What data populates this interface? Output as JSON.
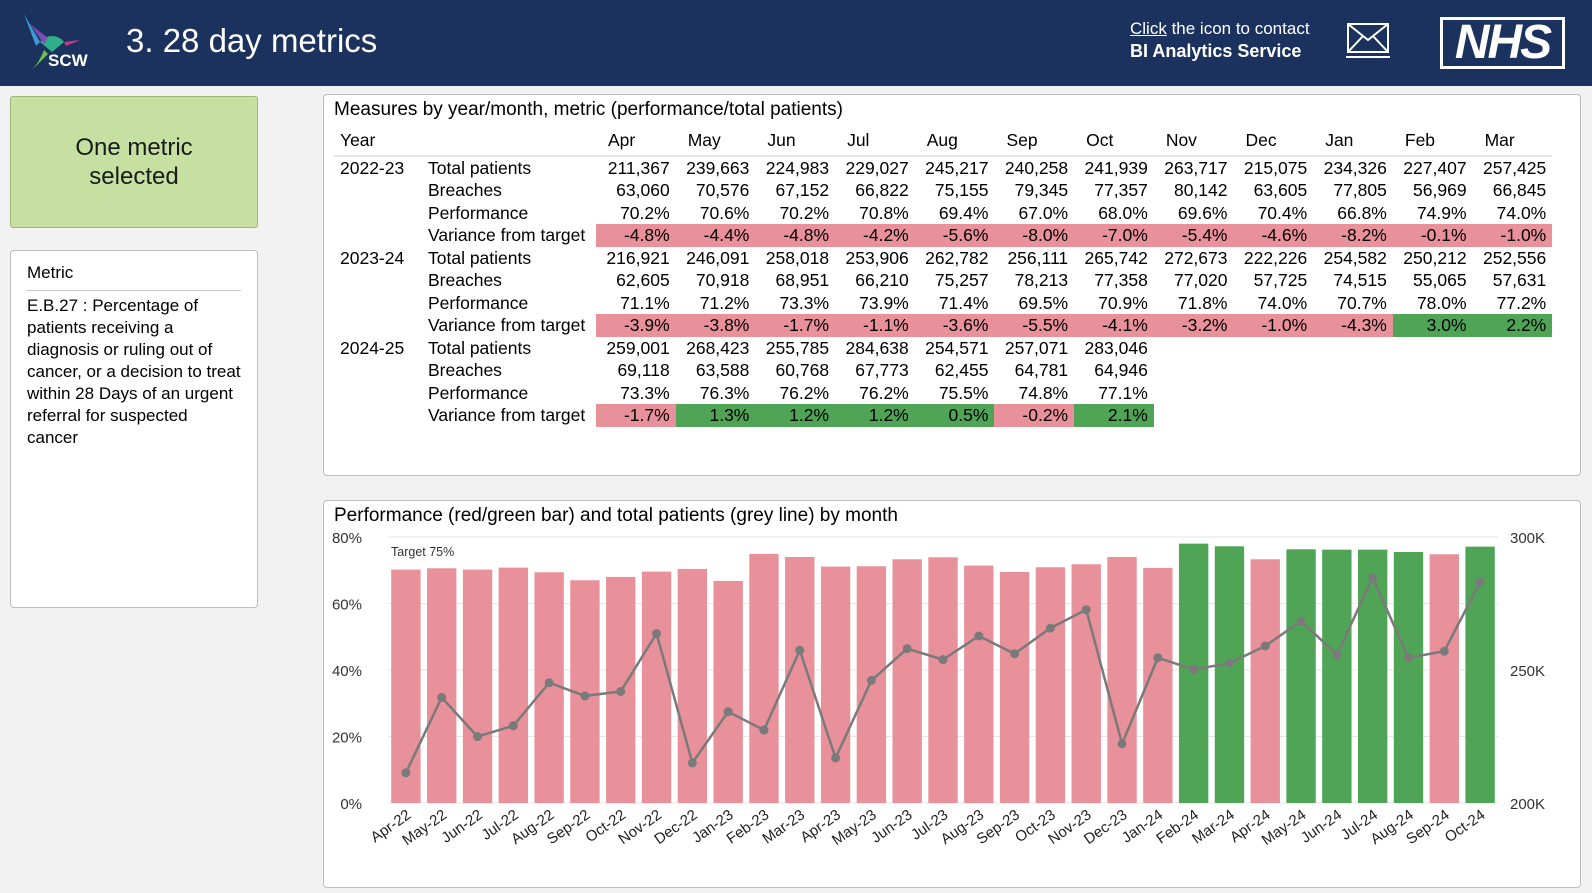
{
  "header": {
    "title": "3. 28 day metrics",
    "logo_text": "SCW",
    "contact_click": "Click",
    "contact_rest": " the icon to contact",
    "contact_service": "BI Analytics Service",
    "nhs_logo": "NHS"
  },
  "left": {
    "selection_label": "One metric selected",
    "metric_header": "Metric",
    "metric_description": "E.B.27 : Percentage of patients receiving a diagnosis or ruling out of cancer, or a decision to treat within 28 Days of an urgent referral for suspected cancer"
  },
  "table": {
    "title": "Measures by year/month, metric (performance/total patients)",
    "year_header": "Year",
    "months": [
      "Apr",
      "May",
      "Jun",
      "Jul",
      "Aug",
      "Sep",
      "Oct",
      "Nov",
      "Dec",
      "Jan",
      "Feb",
      "Mar"
    ],
    "years": [
      {
        "year": "2022-23",
        "rows": [
          {
            "measure": "Total patients",
            "values": [
              "211,367",
              "239,663",
              "224,983",
              "229,027",
              "245,217",
              "240,258",
              "241,939",
              "263,717",
              "215,075",
              "234,326",
              "227,407",
              "257,425"
            ]
          },
          {
            "measure": "Breaches",
            "values": [
              "63,060",
              "70,576",
              "67,152",
              "66,822",
              "75,155",
              "79,345",
              "77,357",
              "80,142",
              "63,605",
              "77,805",
              "56,969",
              "66,845"
            ]
          },
          {
            "measure": "Performance",
            "values": [
              "70.2%",
              "70.6%",
              "70.2%",
              "70.8%",
              "69.4%",
              "67.0%",
              "68.0%",
              "69.6%",
              "70.4%",
              "66.8%",
              "74.9%",
              "74.0%"
            ]
          },
          {
            "measure": "Variance from target",
            "values": [
              "-4.8%",
              "-4.4%",
              "-4.8%",
              "-4.2%",
              "-5.6%",
              "-8.0%",
              "-7.0%",
              "-5.4%",
              "-4.6%",
              "-8.2%",
              "-0.1%",
              "-1.0%"
            ]
          }
        ]
      },
      {
        "year": "2023-24",
        "rows": [
          {
            "measure": "Total patients",
            "values": [
              "216,921",
              "246,091",
              "258,018",
              "253,906",
              "262,782",
              "256,111",
              "265,742",
              "272,673",
              "222,226",
              "254,582",
              "250,212",
              "252,556"
            ]
          },
          {
            "measure": "Breaches",
            "values": [
              "62,605",
              "70,918",
              "68,951",
              "66,210",
              "75,257",
              "78,213",
              "77,358",
              "77,020",
              "57,725",
              "74,515",
              "55,065",
              "57,631"
            ]
          },
          {
            "measure": "Performance",
            "values": [
              "71.1%",
              "71.2%",
              "73.3%",
              "73.9%",
              "71.4%",
              "69.5%",
              "70.9%",
              "71.8%",
              "74.0%",
              "70.7%",
              "78.0%",
              "77.2%"
            ]
          },
          {
            "measure": "Variance from target",
            "values": [
              "-3.9%",
              "-3.8%",
              "-1.7%",
              "-1.1%",
              "-3.6%",
              "-5.5%",
              "-4.1%",
              "-3.2%",
              "-1.0%",
              "-4.3%",
              "3.0%",
              "2.2%"
            ]
          }
        ]
      },
      {
        "year": "2024-25",
        "rows": [
          {
            "measure": "Total patients",
            "values": [
              "259,001",
              "268,423",
              "255,785",
              "284,638",
              "254,571",
              "257,071",
              "283,046",
              "",
              "",
              "",
              "",
              ""
            ]
          },
          {
            "measure": "Breaches",
            "values": [
              "69,118",
              "63,588",
              "60,768",
              "67,773",
              "62,455",
              "64,781",
              "64,946",
              "",
              "",
              "",
              "",
              ""
            ]
          },
          {
            "measure": "Performance",
            "values": [
              "73.3%",
              "76.3%",
              "76.2%",
              "76.2%",
              "75.5%",
              "74.8%",
              "77.1%",
              "",
              "",
              "",
              "",
              ""
            ]
          },
          {
            "measure": "Variance from target",
            "values": [
              "-1.7%",
              "1.3%",
              "1.2%",
              "1.2%",
              "0.5%",
              "-0.2%",
              "2.1%",
              "",
              "",
              "",
              "",
              ""
            ]
          }
        ]
      }
    ]
  },
  "chart_data": {
    "type": "bar",
    "title": "Performance (red/green bar) and total patients (grey line) by month",
    "categories": [
      "Apr-22",
      "May-22",
      "Jun-22",
      "Jul-22",
      "Aug-22",
      "Sep-22",
      "Oct-22",
      "Nov-22",
      "Dec-22",
      "Jan-23",
      "Feb-23",
      "Mar-23",
      "Apr-23",
      "May-23",
      "Jun-23",
      "Jul-23",
      "Aug-23",
      "Sep-23",
      "Oct-23",
      "Nov-23",
      "Dec-23",
      "Jan-24",
      "Feb-24",
      "Mar-24",
      "Apr-24",
      "May-24",
      "Jun-24",
      "Jul-24",
      "Aug-24",
      "Sep-24",
      "Oct-24"
    ],
    "series": [
      {
        "name": "Performance",
        "axis": "left",
        "values": [
          70.2,
          70.6,
          70.2,
          70.8,
          69.4,
          67.0,
          68.0,
          69.6,
          70.4,
          66.8,
          74.9,
          74.0,
          71.1,
          71.2,
          73.3,
          73.9,
          71.4,
          69.5,
          70.9,
          71.8,
          74.0,
          70.7,
          78.0,
          77.2,
          73.3,
          76.3,
          76.2,
          76.2,
          75.5,
          74.8,
          77.1
        ]
      },
      {
        "name": "Total patients",
        "axis": "right",
        "values": [
          211367,
          239663,
          224983,
          229027,
          245217,
          240258,
          241939,
          263717,
          215075,
          234326,
          227407,
          257425,
          216921,
          246091,
          258018,
          253906,
          262782,
          256111,
          265742,
          272673,
          222226,
          254582,
          250212,
          252556,
          259001,
          268423,
          255785,
          284638,
          254571,
          257071,
          283046
        ]
      }
    ],
    "target": 75,
    "target_label": "Target 75%",
    "ylim_left": [
      0,
      80
    ],
    "yticks_left": [
      "0%",
      "20%",
      "40%",
      "60%",
      "80%"
    ],
    "ylim_right": [
      200000,
      300000
    ],
    "yticks_right": [
      "200K",
      "250K",
      "300K"
    ],
    "colors": {
      "below_target": "#e8919a",
      "above_target": "#4fa456",
      "line": "#7a7a7a"
    }
  }
}
